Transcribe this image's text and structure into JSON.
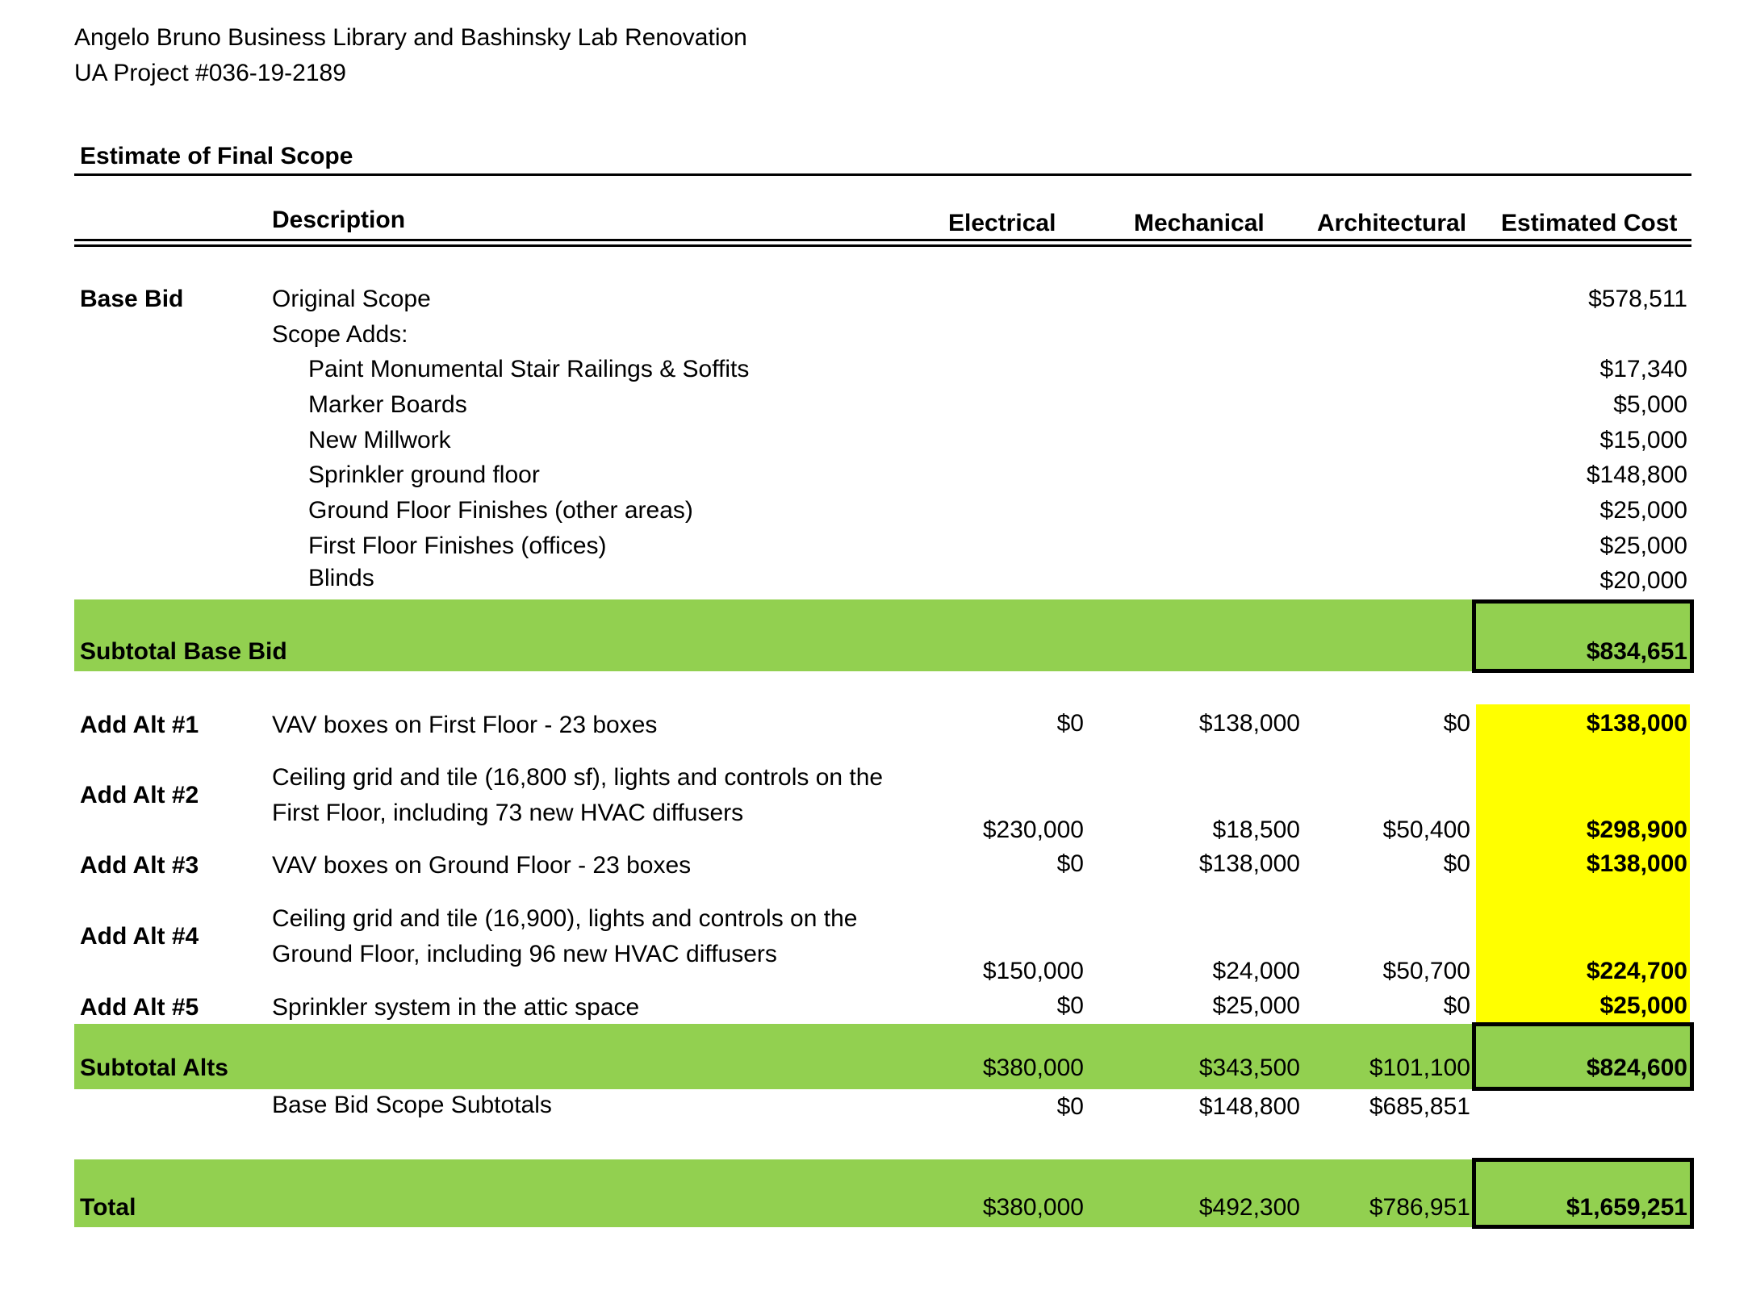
{
  "header": {
    "line1": "Angelo Bruno Business Library and Bashinsky Lab Renovation",
    "line2": "UA Project #036-19-2189"
  },
  "section_title": "Estimate of Final Scope",
  "columns": {
    "description": "Description",
    "electrical": "Electrical",
    "mechanical": "Mechanical",
    "architectural": "Architectural",
    "estimated_cost": "Estimated Cost"
  },
  "base_bid": {
    "label": "Base Bid",
    "original_scope": {
      "desc": "Original Scope",
      "cost": "$578,511"
    },
    "scope_adds_label": "Scope Adds:",
    "adds": [
      {
        "desc": "Paint Monumental Stair Railings & Soffits",
        "cost": "$17,340"
      },
      {
        "desc": "Marker Boards",
        "cost": "$5,000"
      },
      {
        "desc": "New Millwork",
        "cost": "$15,000"
      },
      {
        "desc": "Sprinkler ground floor",
        "cost": "$148,800"
      },
      {
        "desc": "Ground Floor Finishes (other areas)",
        "cost": "$25,000"
      },
      {
        "desc": "First Floor Finishes (offices)",
        "cost": "$25,000"
      },
      {
        "desc": "Blinds",
        "cost": "$20,000"
      }
    ],
    "subtotal_label": "Subtotal Base Bid",
    "subtotal_cost": "$834,651"
  },
  "alts": [
    {
      "label": "Add Alt #1",
      "desc": "VAV boxes on First Floor  - 23 boxes",
      "desc2": "",
      "electrical": "$0",
      "mechanical": "$138,000",
      "architectural": "$0",
      "cost": "$138,000"
    },
    {
      "label": "Add Alt #2",
      "desc": "Ceiling grid and tile (16,800 sf), lights and controls on the",
      "desc2": "First Floor, including 73 new HVAC diffusers",
      "electrical": "$230,000",
      "mechanical": "$18,500",
      "architectural": "$50,400",
      "cost": "$298,900"
    },
    {
      "label": "Add Alt #3",
      "desc": "VAV boxes on Ground Floor - 23 boxes",
      "desc2": "",
      "electrical": "$0",
      "mechanical": "$138,000",
      "architectural": "$0",
      "cost": "$138,000"
    },
    {
      "label": "Add Alt #4",
      "desc": "Ceiling grid and tile (16,900), lights and controls on the",
      "desc2": "Ground Floor, including 96 new HVAC diffusers",
      "electrical": "$150,000",
      "mechanical": "$24,000",
      "architectural": "$50,700",
      "cost": "$224,700"
    },
    {
      "label": "Add Alt #5",
      "desc": "Sprinkler system in the attic space",
      "desc2": "",
      "electrical": "$0",
      "mechanical": "$25,000",
      "architectural": "$0",
      "cost": "$25,000"
    }
  ],
  "subtotal_alts": {
    "label": "Subtotal Alts",
    "electrical": "$380,000",
    "mechanical": "$343,500",
    "architectural": "$101,100",
    "cost": "$824,600"
  },
  "base_bid_scope_subtotals": {
    "label": "Base Bid Scope Subtotals",
    "electrical": "$0",
    "mechanical": "$148,800",
    "architectural": "$685,851"
  },
  "total": {
    "label": "Total",
    "electrical": "$380,000",
    "mechanical": "$492,300",
    "architectural": "$786,951",
    "cost": "$1,659,251"
  },
  "colors": {
    "green_band": "#92d050",
    "yellow_highlight": "#ffff00"
  }
}
